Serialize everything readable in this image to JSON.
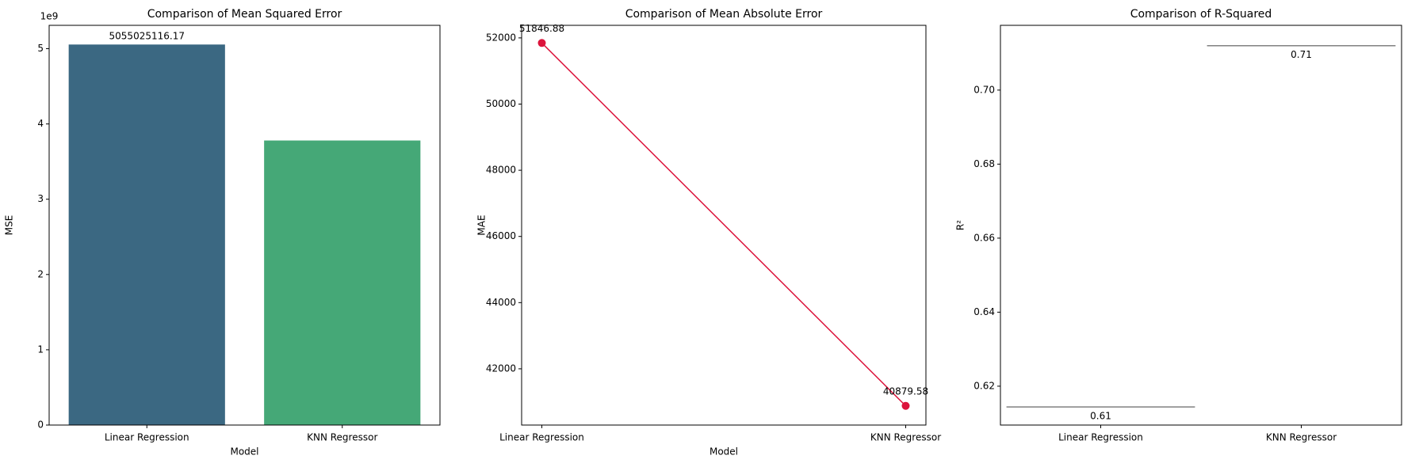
{
  "chart_data": [
    {
      "type": "bar",
      "title": "Comparison of Mean Squared Error",
      "x_label": "Model",
      "y_label": "MSE",
      "y_offset_label": "1e9",
      "categories": [
        "Linear Regression",
        "KNN Regressor"
      ],
      "values": [
        5055025116.17,
        3780000000
      ],
      "value_labels": [
        "5055025116.17",
        null
      ],
      "colors": [
        "#3b6882",
        "#45a877"
      ],
      "ylim": [
        0,
        5310000000
      ],
      "yticks": [
        0,
        {
          "value": 1000000000,
          "label": "1"
        },
        {
          "value": 2000000000,
          "label": "2"
        },
        {
          "value": 3000000000,
          "label": "3"
        },
        {
          "value": 4000000000,
          "label": "4"
        },
        {
          "value": 5000000000,
          "label": "5"
        }
      ]
    },
    {
      "type": "line",
      "title": "Comparison of Mean Absolute Error",
      "x_label": "Model",
      "y_label": "MAE",
      "categories": [
        "Linear Regression",
        "KNN Regressor"
      ],
      "values": [
        51846.88,
        40879.58
      ],
      "value_labels": [
        "51846.88",
        "40879.58"
      ],
      "color": "#dc143c",
      "ylim": [
        40300,
        52380
      ],
      "yticks": [
        42000,
        44000,
        46000,
        48000,
        50000,
        52000
      ]
    },
    {
      "type": "hline",
      "title": "Comparison of R-Squared",
      "y_label": "R²",
      "categories": [
        "Linear Regression",
        "KNN Regressor"
      ],
      "values": [
        0.6144,
        0.712
      ],
      "value_labels": [
        "0.61",
        "0.71"
      ],
      "color": "#808080",
      "ylim": [
        0.6095,
        0.7175
      ],
      "yticks": [
        {
          "value": 0.62,
          "label": "0.62"
        },
        {
          "value": 0.64,
          "label": "0.64"
        },
        {
          "value": 0.66,
          "label": "0.66"
        },
        {
          "value": 0.68,
          "label": "0.68"
        },
        {
          "value": 0.7,
          "label": "0.70"
        }
      ]
    }
  ]
}
